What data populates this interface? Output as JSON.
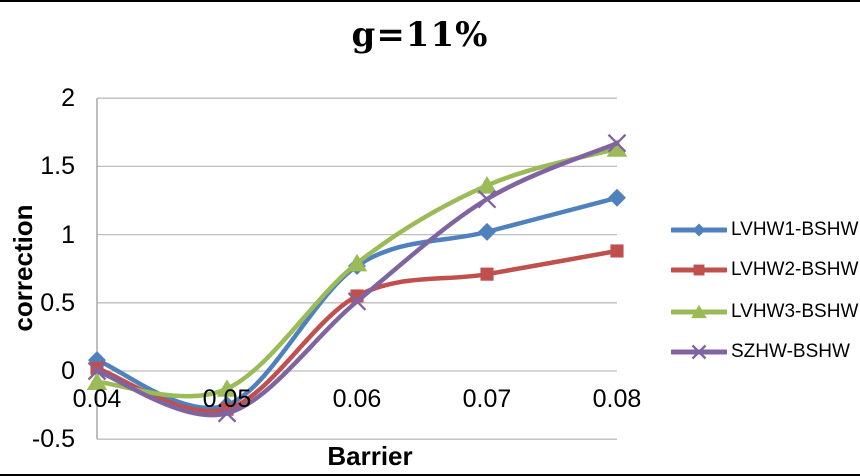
{
  "chart_data": {
    "type": "line",
    "line_style": "smooth",
    "title": "g=11%",
    "xlabel": "Barrier",
    "ylabel": "correction",
    "x": [
      0.04,
      0.05,
      0.06,
      0.07,
      0.08
    ],
    "x_tick_labels": [
      "0.04",
      "0.05",
      "0.06",
      "0.07",
      "0.08"
    ],
    "y_tick_labels": [
      "2",
      "1.5",
      "1",
      "0.5",
      "0",
      "-0.5"
    ],
    "y_ticks": [
      2,
      1.5,
      1,
      0.5,
      0,
      -0.5
    ],
    "ylim": [
      -0.5,
      2
    ],
    "y_step": 0.5,
    "grid": "horizontal",
    "legend_position": "right",
    "colors": {
      "gridline": "#BEBEBE",
      "axis": "#9A9A9A",
      "border": "#000000",
      "background": "#FFFFFF"
    },
    "series": [
      {
        "name": "LVHW1-BSHW",
        "color": "#4F81BD",
        "marker": "diamond",
        "values": [
          0.08,
          -0.25,
          0.77,
          1.02,
          1.27
        ]
      },
      {
        "name": "LVHW2-BSHW",
        "color": "#C0504D",
        "marker": "square",
        "values": [
          0.02,
          -0.28,
          0.55,
          0.71,
          0.88
        ]
      },
      {
        "name": "LVHW3-BSHW",
        "color": "#9BBB59",
        "marker": "triangle",
        "values": [
          -0.08,
          -0.13,
          0.79,
          1.36,
          1.63
        ]
      },
      {
        "name": "SZHW-BSHW",
        "color": "#8064A2",
        "marker": "x",
        "values": [
          0.0,
          -0.31,
          0.51,
          1.26,
          1.67
        ]
      }
    ]
  }
}
